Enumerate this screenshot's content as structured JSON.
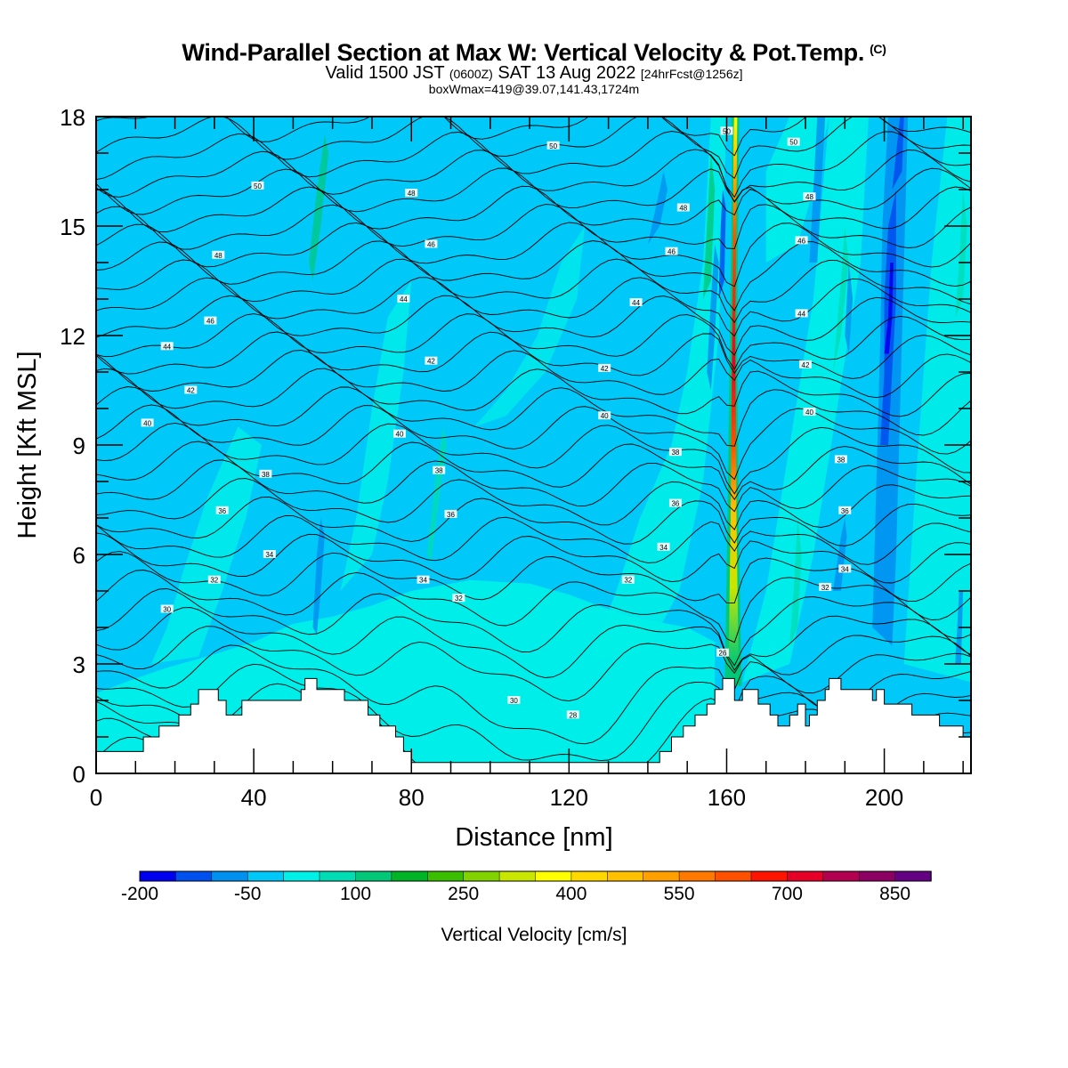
{
  "header": {
    "title": "Wind-Parallel Section at Max W: Vertical Velocity & Pot.Temp.",
    "copyright": "(C)",
    "valid_prefix": "Valid 1500 JST",
    "valid_utc": "(0600Z)",
    "valid_date": "SAT 13 Aug 2022",
    "forecast": "[24hrFcst@1256z]",
    "boxinfo": "boxWmax=419@39.07,141.43,1724m"
  },
  "chart_data": {
    "type": "heatmap",
    "xlabel": "Distance [nm]",
    "ylabel": "Height [Kft MSL]",
    "xlim": [
      0,
      222
    ],
    "ylim": [
      0,
      18
    ],
    "x_ticks": [
      "0",
      "40",
      "80",
      "120",
      "160",
      "200"
    ],
    "y_ticks": [
      "0",
      "3",
      "6",
      "9",
      "12",
      "15",
      "18"
    ],
    "colorbar": {
      "title": "Vertical Velocity [cm/s]",
      "labels": [
        "-200",
        "-50",
        "100",
        "250",
        "400",
        "550",
        "700",
        "850"
      ],
      "levels": [
        -200,
        -150,
        -100,
        -50,
        0,
        50,
        100,
        150,
        200,
        250,
        300,
        350,
        400,
        450,
        500,
        550,
        600,
        650,
        700,
        750,
        800,
        850,
        900,
        950
      ],
      "colors": [
        "#0000f0",
        "#0050f0",
        "#0090f0",
        "#00c8f8",
        "#00f0e8",
        "#00dcb4",
        "#00c878",
        "#00b428",
        "#3cbe00",
        "#82d200",
        "#c8e600",
        "#ffff00",
        "#ffd800",
        "#ffc000",
        "#ffa000",
        "#ff7800",
        "#ff5000",
        "#ff1400",
        "#e60028",
        "#b40050",
        "#8c0064",
        "#640082"
      ]
    },
    "terrain_kft": [
      [
        0,
        0.6
      ],
      [
        12,
        0.6
      ],
      [
        12,
        1.0
      ],
      [
        16,
        1.0
      ],
      [
        16,
        1.3
      ],
      [
        21,
        1.3
      ],
      [
        21,
        1.6
      ],
      [
        24,
        1.6
      ],
      [
        24,
        1.9
      ],
      [
        26,
        1.9
      ],
      [
        26,
        2.3
      ],
      [
        31,
        2.3
      ],
      [
        31,
        2.0
      ],
      [
        33,
        2.0
      ],
      [
        33,
        1.6
      ],
      [
        37,
        1.6
      ],
      [
        37,
        2.0
      ],
      [
        52,
        2.0
      ],
      [
        52,
        2.3
      ],
      [
        53,
        2.3
      ],
      [
        53,
        2.6
      ],
      [
        56,
        2.6
      ],
      [
        56,
        2.3
      ],
      [
        63,
        2.3
      ],
      [
        63,
        2.0
      ],
      [
        69,
        2.0
      ],
      [
        69,
        1.6
      ],
      [
        72,
        1.6
      ],
      [
        72,
        1.3
      ],
      [
        76,
        1.3
      ],
      [
        76,
        1.0
      ],
      [
        78,
        1.0
      ],
      [
        78,
        0.6
      ],
      [
        80,
        0.6
      ],
      [
        80,
        0.3
      ],
      [
        98,
        0.3
      ],
      [
        108,
        0.3
      ],
      [
        143,
        0.3
      ],
      [
        143,
        0.6
      ],
      [
        146,
        0.6
      ],
      [
        146,
        1.0
      ],
      [
        149,
        1.0
      ],
      [
        149,
        1.3
      ],
      [
        152,
        1.3
      ],
      [
        152,
        1.6
      ],
      [
        155,
        1.6
      ],
      [
        155,
        1.9
      ],
      [
        157,
        1.9
      ],
      [
        157,
        2.3
      ],
      [
        159,
        2.3
      ],
      [
        159,
        2.6
      ],
      [
        162,
        2.6
      ],
      [
        162,
        2.0
      ],
      [
        164,
        2.0
      ],
      [
        164,
        2.3
      ],
      [
        168,
        2.3
      ],
      [
        168,
        1.9
      ],
      [
        171,
        1.9
      ],
      [
        171,
        1.6
      ],
      [
        173,
        1.6
      ],
      [
        173,
        1.3
      ],
      [
        176,
        1.3
      ],
      [
        176,
        1.6
      ],
      [
        178,
        1.6
      ],
      [
        178,
        1.9
      ],
      [
        180,
        1.9
      ],
      [
        180,
        1.3
      ],
      [
        181,
        1.3
      ],
      [
        181,
        1.6
      ],
      [
        183,
        1.6
      ],
      [
        183,
        2.0
      ],
      [
        185,
        2.0
      ],
      [
        185,
        2.3
      ],
      [
        186,
        2.3
      ],
      [
        186,
        2.6
      ],
      [
        189,
        2.6
      ],
      [
        189,
        2.3
      ],
      [
        197,
        2.3
      ],
      [
        197,
        2.0
      ],
      [
        198,
        2.0
      ],
      [
        198,
        2.3
      ],
      [
        200,
        2.3
      ],
      [
        200,
        1.9
      ],
      [
        207,
        1.9
      ],
      [
        207,
        1.6
      ],
      [
        214,
        1.6
      ],
      [
        214,
        1.3
      ],
      [
        220,
        1.3
      ],
      [
        220,
        1.0
      ],
      [
        222,
        1.0
      ]
    ],
    "theta_contour_labels": [
      {
        "x": 18,
        "y": 4.5,
        "text": "30"
      },
      {
        "x": 30,
        "y": 5.3,
        "text": "32"
      },
      {
        "x": 44,
        "y": 6.0,
        "text": "34"
      },
      {
        "x": 32,
        "y": 7.2,
        "text": "36"
      },
      {
        "x": 43,
        "y": 8.2,
        "text": "38"
      },
      {
        "x": 13,
        "y": 9.6,
        "text": "40"
      },
      {
        "x": 24,
        "y": 10.5,
        "text": "42"
      },
      {
        "x": 18,
        "y": 11.7,
        "text": "44"
      },
      {
        "x": 29,
        "y": 12.4,
        "text": "46"
      },
      {
        "x": 31,
        "y": 14.2,
        "text": "48"
      },
      {
        "x": 41,
        "y": 16.1,
        "text": "50"
      },
      {
        "x": 83,
        "y": 5.3,
        "text": "34"
      },
      {
        "x": 92,
        "y": 4.8,
        "text": "32"
      },
      {
        "x": 87,
        "y": 8.3,
        "text": "38"
      },
      {
        "x": 90,
        "y": 7.1,
        "text": "36"
      },
      {
        "x": 77,
        "y": 9.3,
        "text": "40"
      },
      {
        "x": 85,
        "y": 11.3,
        "text": "42"
      },
      {
        "x": 78,
        "y": 13.0,
        "text": "44"
      },
      {
        "x": 85,
        "y": 14.5,
        "text": "46"
      },
      {
        "x": 80,
        "y": 15.9,
        "text": "48"
      },
      {
        "x": 116,
        "y": 17.2,
        "text": "50"
      },
      {
        "x": 106,
        "y": 2.0,
        "text": "30"
      },
      {
        "x": 121,
        "y": 1.6,
        "text": "28"
      },
      {
        "x": 135,
        "y": 5.3,
        "text": "32"
      },
      {
        "x": 144,
        "y": 6.2,
        "text": "34"
      },
      {
        "x": 147,
        "y": 7.4,
        "text": "36"
      },
      {
        "x": 147,
        "y": 8.8,
        "text": "38"
      },
      {
        "x": 129,
        "y": 9.8,
        "text": "40"
      },
      {
        "x": 129,
        "y": 11.1,
        "text": "42"
      },
      {
        "x": 137,
        "y": 12.9,
        "text": "44"
      },
      {
        "x": 146,
        "y": 14.3,
        "text": "46"
      },
      {
        "x": 149,
        "y": 15.5,
        "text": "48"
      },
      {
        "x": 159,
        "y": 3.3,
        "text": "26"
      },
      {
        "x": 160,
        "y": 17.6,
        "text": "50"
      },
      {
        "x": 177,
        "y": 17.3,
        "text": "50"
      },
      {
        "x": 181,
        "y": 15.8,
        "text": "48"
      },
      {
        "x": 179,
        "y": 14.6,
        "text": "46"
      },
      {
        "x": 179,
        "y": 12.6,
        "text": "44"
      },
      {
        "x": 180,
        "y": 11.2,
        "text": "42"
      },
      {
        "x": 181,
        "y": 9.9,
        "text": "40"
      },
      {
        "x": 189,
        "y": 8.6,
        "text": "38"
      },
      {
        "x": 190,
        "y": 7.2,
        "text": "36"
      },
      {
        "x": 190,
        "y": 5.6,
        "text": "34"
      },
      {
        "x": 185,
        "y": 5.1,
        "text": "32"
      }
    ]
  }
}
